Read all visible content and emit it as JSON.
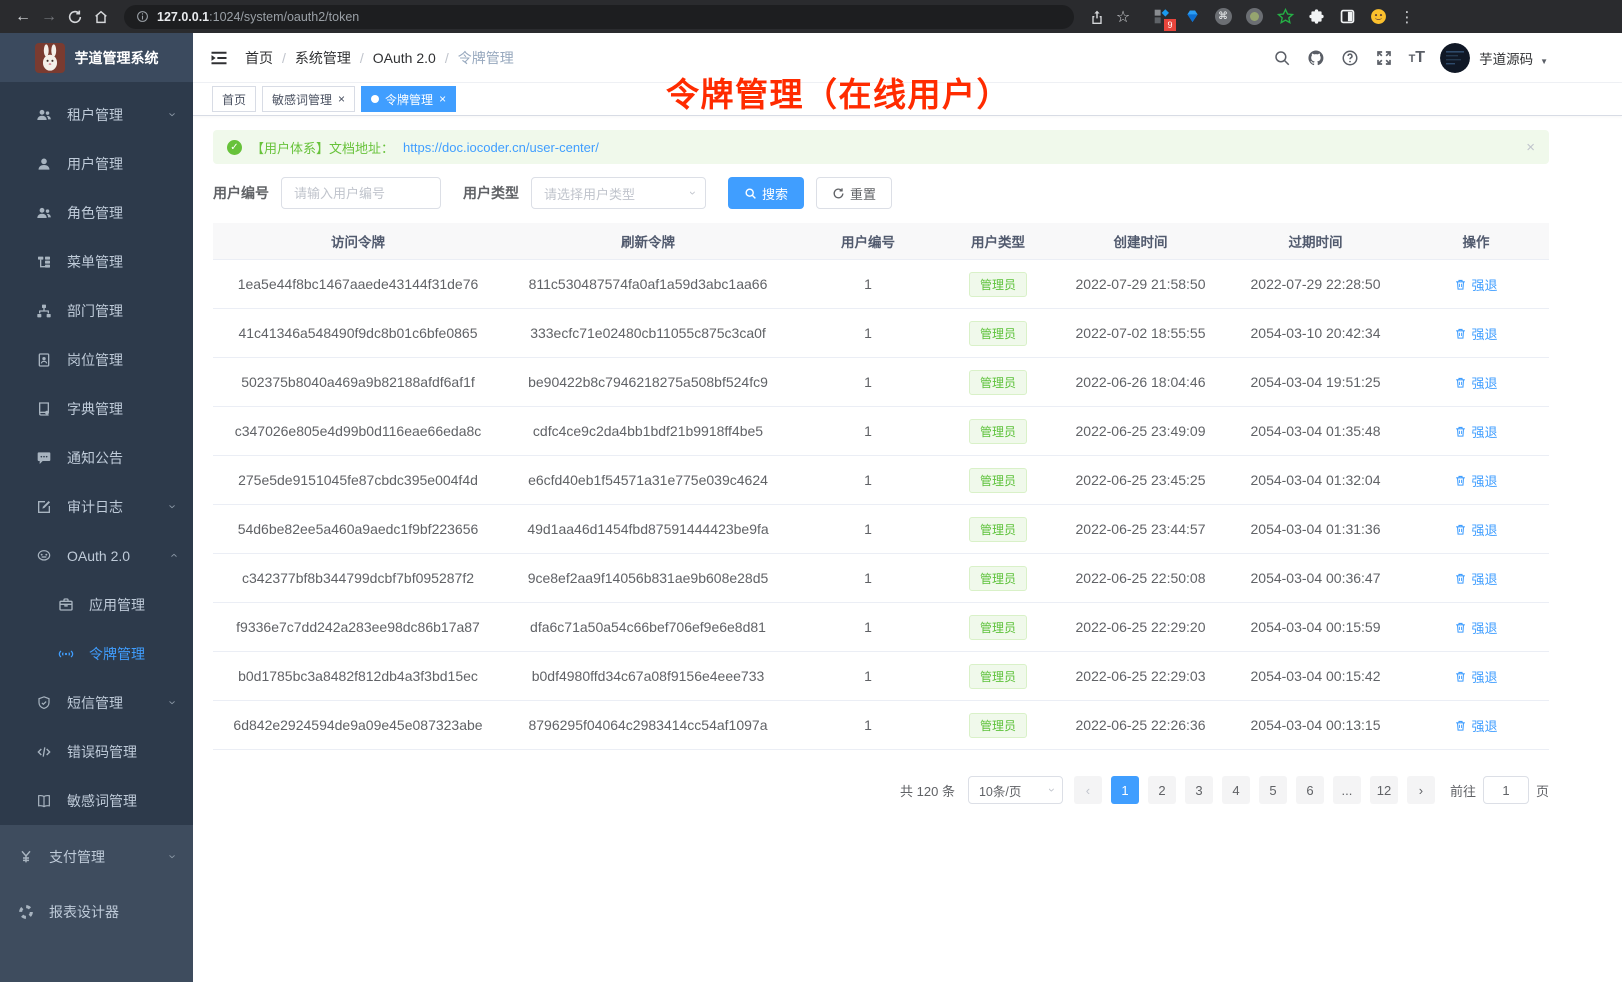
{
  "colors": {
    "accent": "#409eff",
    "success": "#67c23a",
    "annotation_red": "#ff2b00",
    "sidebar_bg": "#2d3a4b"
  },
  "browser": {
    "url_host": "127.0.0.1",
    "url_rest": ":1024/system/oauth2/token",
    "extension_badge": "9"
  },
  "annotation": {
    "text": "令牌管理（在线用户）"
  },
  "app": {
    "title": "芋道管理系统",
    "user_name": "芋道源码"
  },
  "sidebar": {
    "items": [
      {
        "icon": "tenant-users-icon",
        "label": "租户管理",
        "chevron": "down"
      },
      {
        "icon": "user-icon",
        "label": "用户管理"
      },
      {
        "icon": "role-users-icon",
        "label": "角色管理"
      },
      {
        "icon": "menu-tree-icon",
        "label": "菜单管理"
      },
      {
        "icon": "department-tree-icon",
        "label": "部门管理"
      },
      {
        "icon": "post-badge-icon",
        "label": "岗位管理"
      },
      {
        "icon": "dictionary-icon",
        "label": "字典管理"
      },
      {
        "icon": "notice-icon",
        "label": "通知公告"
      },
      {
        "icon": "audit-log-icon",
        "label": "审计日志",
        "chevron": "down"
      },
      {
        "icon": "oauth-icon",
        "label": "OAuth 2.0",
        "chevron": "up"
      },
      {
        "icon": "app-manage-icon",
        "label": "应用管理",
        "child": true
      },
      {
        "icon": "token-icon",
        "label": "令牌管理",
        "child": true,
        "active": true
      },
      {
        "icon": "sms-shield-icon",
        "label": "短信管理",
        "chevron": "down"
      },
      {
        "icon": "error-code-icon",
        "label": "错误码管理"
      },
      {
        "icon": "sensitive-word-icon",
        "label": "敏感词管理"
      },
      {
        "icon": "payment-yen-icon",
        "label": "支付管理",
        "chevron": "down",
        "section": "bottom"
      },
      {
        "icon": "report-designer-icon",
        "label": "报表设计器",
        "section": "bottom"
      }
    ]
  },
  "breadcrumb": [
    "首页",
    "系统管理",
    "OAuth 2.0",
    "令牌管理"
  ],
  "tabs": [
    {
      "label": "首页"
    },
    {
      "label": "敏感词管理",
      "closable": true
    },
    {
      "label": "令牌管理",
      "closable": true,
      "active": true
    }
  ],
  "alert": {
    "text": "【用户体系】文档地址：",
    "link": "https://doc.iocoder.cn/user-center/"
  },
  "filters": {
    "user_id_label": "用户编号",
    "user_id_placeholder": "请输入用户编号",
    "user_type_label": "用户类型",
    "user_type_placeholder": "请选择用户类型",
    "search_label": "搜索",
    "reset_label": "重置"
  },
  "table": {
    "columns": [
      "访问令牌",
      "刷新令牌",
      "用户编号",
      "用户类型",
      "创建时间",
      "过期时间",
      "操作"
    ],
    "action_label": "强退",
    "rows": [
      {
        "access_token": "1ea5e44f8bc1467aaede43144f31de76",
        "refresh_token": "811c530487574fa0af1a59d3abc1aa66",
        "user_id": "1",
        "user_type": "管理员",
        "created_at": "2022-07-29 21:58:50",
        "expires_at": "2022-07-29 22:28:50"
      },
      {
        "access_token": "41c41346a548490f9dc8b01c6bfe0865",
        "refresh_token": "333ecfc71e02480cb11055c875c3ca0f",
        "user_id": "1",
        "user_type": "管理员",
        "created_at": "2022-07-02 18:55:55",
        "expires_at": "2054-03-10 20:42:34"
      },
      {
        "access_token": "502375b8040a469a9b82188afdf6af1f",
        "refresh_token": "be90422b8c7946218275a508bf524fc9",
        "user_id": "1",
        "user_type": "管理员",
        "created_at": "2022-06-26 18:04:46",
        "expires_at": "2054-03-04 19:51:25"
      },
      {
        "access_token": "c347026e805e4d99b0d116eae66eda8c",
        "refresh_token": "cdfc4ce9c2da4bb1bdf21b9918ff4be5",
        "user_id": "1",
        "user_type": "管理员",
        "created_at": "2022-06-25 23:49:09",
        "expires_at": "2054-03-04 01:35:48"
      },
      {
        "access_token": "275e5de9151045fe87cbdc395e004f4d",
        "refresh_token": "e6cfd40eb1f54571a31e775e039c4624",
        "user_id": "1",
        "user_type": "管理员",
        "created_at": "2022-06-25 23:45:25",
        "expires_at": "2054-03-04 01:32:04"
      },
      {
        "access_token": "54d6be82ee5a460a9aedc1f9bf223656",
        "refresh_token": "49d1aa46d1454fbd87591444423be9fa",
        "user_id": "1",
        "user_type": "管理员",
        "created_at": "2022-06-25 23:44:57",
        "expires_at": "2054-03-04 01:31:36"
      },
      {
        "access_token": "c342377bf8b344799dcbf7bf095287f2",
        "refresh_token": "9ce8ef2aa9f14056b831ae9b608e28d5",
        "user_id": "1",
        "user_type": "管理员",
        "created_at": "2022-06-25 22:50:08",
        "expires_at": "2054-03-04 00:36:47"
      },
      {
        "access_token": "f9336e7c7dd242a283ee98dc86b17a87",
        "refresh_token": "dfa6c71a50a54c66bef706ef9e6e8d81",
        "user_id": "1",
        "user_type": "管理员",
        "created_at": "2022-06-25 22:29:20",
        "expires_at": "2054-03-04 00:15:59"
      },
      {
        "access_token": "b0d1785bc3a8482f812db4a3f3bd15ec",
        "refresh_token": "b0df4980ffd34c67a08f9156e4eee733",
        "user_id": "1",
        "user_type": "管理员",
        "created_at": "2022-06-25 22:29:03",
        "expires_at": "2054-03-04 00:15:42"
      },
      {
        "access_token": "6d842e2924594de9a09e45e087323abe",
        "refresh_token": "8796295f04064c2983414cc54af1097a",
        "user_id": "1",
        "user_type": "管理员",
        "created_at": "2022-06-25 22:26:36",
        "expires_at": "2054-03-04 00:13:15"
      }
    ]
  },
  "pagination": {
    "total_label": "共 120 条",
    "page_size": "10条/页",
    "pages": [
      "1",
      "2",
      "3",
      "4",
      "5",
      "6",
      "...",
      "12"
    ],
    "active_page": "1",
    "goto_label": "前往",
    "goto_value": "1",
    "goto_unit": "页"
  }
}
